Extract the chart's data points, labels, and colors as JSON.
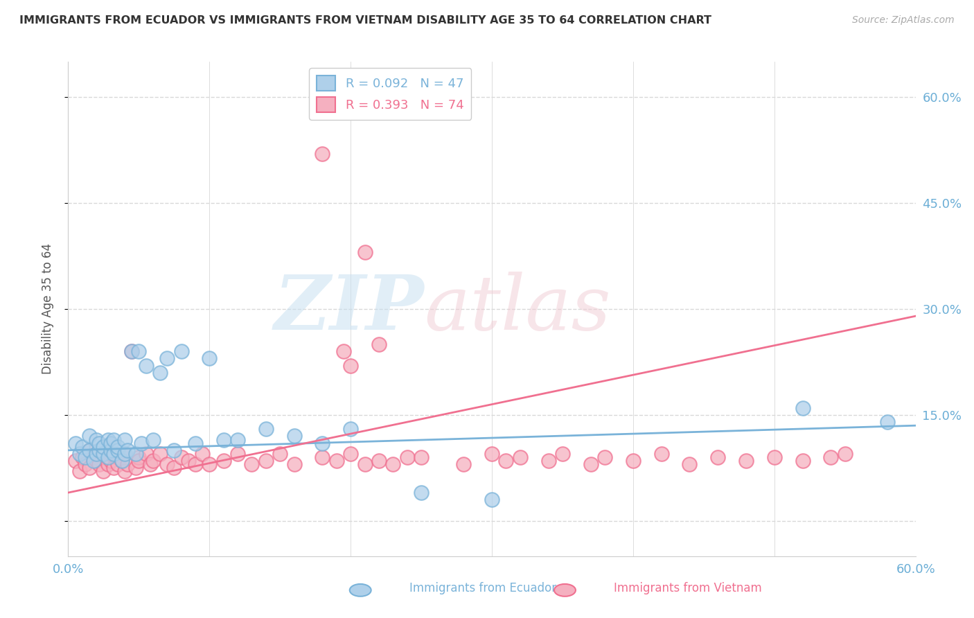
{
  "title": "IMMIGRANTS FROM ECUADOR VS IMMIGRANTS FROM VIETNAM DISABILITY AGE 35 TO 64 CORRELATION CHART",
  "source": "Source: ZipAtlas.com",
  "ylabel": "Disability Age 35 to 64",
  "ecuador_color": "#7ab3d9",
  "ecuador_color_fill": "#afd0ea",
  "vietnam_color": "#f07090",
  "vietnam_color_fill": "#f5b0c0",
  "ecuador_R": 0.092,
  "ecuador_N": 47,
  "vietnam_R": 0.393,
  "vietnam_N": 74,
  "legend_R_label1": "R = 0.092   N = 47",
  "legend_R_label2": "R = 0.393   N = 74",
  "grid_color": "#d8d8d8",
  "tick_label_color": "#6baed6",
  "title_color": "#333333",
  "background_color": "#ffffff",
  "yticks": [
    0.0,
    0.15,
    0.3,
    0.45,
    0.6
  ],
  "ytick_labels": [
    "",
    "15.0%",
    "30.0%",
    "45.0%",
    "60.0%"
  ],
  "xtick_labels": [
    "0.0%",
    "60.0%"
  ],
  "xlim": [
    0.0,
    0.6
  ],
  "ylim": [
    -0.05,
    0.65
  ],
  "ec_line_start": 0.1,
  "ec_line_end": 0.135,
  "vn_line_start": 0.04,
  "vn_line_end": 0.29,
  "ecuador_x": [
    0.005,
    0.008,
    0.01,
    0.012,
    0.015,
    0.015,
    0.018,
    0.02,
    0.02,
    0.022,
    0.022,
    0.025,
    0.025,
    0.028,
    0.028,
    0.03,
    0.03,
    0.032,
    0.032,
    0.035,
    0.035,
    0.038,
    0.04,
    0.04,
    0.042,
    0.045,
    0.048,
    0.05,
    0.052,
    0.055,
    0.06,
    0.065,
    0.07,
    0.075,
    0.08,
    0.09,
    0.1,
    0.11,
    0.12,
    0.14,
    0.16,
    0.18,
    0.2,
    0.25,
    0.3,
    0.52,
    0.58
  ],
  "ecuador_y": [
    0.11,
    0.095,
    0.105,
    0.09,
    0.1,
    0.12,
    0.085,
    0.095,
    0.115,
    0.1,
    0.11,
    0.095,
    0.105,
    0.09,
    0.115,
    0.1,
    0.11,
    0.095,
    0.115,
    0.1,
    0.105,
    0.085,
    0.095,
    0.115,
    0.1,
    0.24,
    0.095,
    0.24,
    0.11,
    0.22,
    0.115,
    0.21,
    0.23,
    0.1,
    0.24,
    0.11,
    0.23,
    0.115,
    0.115,
    0.13,
    0.12,
    0.11,
    0.13,
    0.04,
    0.03,
    0.16,
    0.14
  ],
  "vietnam_x": [
    0.005,
    0.008,
    0.01,
    0.012,
    0.015,
    0.015,
    0.018,
    0.02,
    0.02,
    0.022,
    0.025,
    0.025,
    0.028,
    0.028,
    0.03,
    0.03,
    0.032,
    0.035,
    0.035,
    0.038,
    0.04,
    0.04,
    0.042,
    0.045,
    0.048,
    0.05,
    0.05,
    0.055,
    0.058,
    0.06,
    0.065,
    0.07,
    0.075,
    0.08,
    0.085,
    0.09,
    0.095,
    0.1,
    0.11,
    0.12,
    0.13,
    0.14,
    0.15,
    0.16,
    0.18,
    0.19,
    0.2,
    0.21,
    0.22,
    0.23,
    0.24,
    0.25,
    0.28,
    0.3,
    0.31,
    0.32,
    0.34,
    0.35,
    0.37,
    0.38,
    0.4,
    0.42,
    0.44,
    0.46,
    0.48,
    0.5,
    0.52,
    0.54,
    0.2,
    0.55,
    0.18,
    0.195,
    0.21,
    0.22
  ],
  "vietnam_y": [
    0.085,
    0.07,
    0.09,
    0.08,
    0.1,
    0.075,
    0.09,
    0.085,
    0.095,
    0.08,
    0.07,
    0.095,
    0.08,
    0.09,
    0.085,
    0.095,
    0.075,
    0.09,
    0.08,
    0.085,
    0.07,
    0.095,
    0.08,
    0.24,
    0.075,
    0.09,
    0.085,
    0.095,
    0.08,
    0.085,
    0.095,
    0.08,
    0.075,
    0.09,
    0.085,
    0.08,
    0.095,
    0.08,
    0.085,
    0.095,
    0.08,
    0.085,
    0.095,
    0.08,
    0.09,
    0.085,
    0.095,
    0.08,
    0.085,
    0.08,
    0.09,
    0.09,
    0.08,
    0.095,
    0.085,
    0.09,
    0.085,
    0.095,
    0.08,
    0.09,
    0.085,
    0.095,
    0.08,
    0.09,
    0.085,
    0.09,
    0.085,
    0.09,
    0.22,
    0.095,
    0.52,
    0.24,
    0.38,
    0.25
  ]
}
